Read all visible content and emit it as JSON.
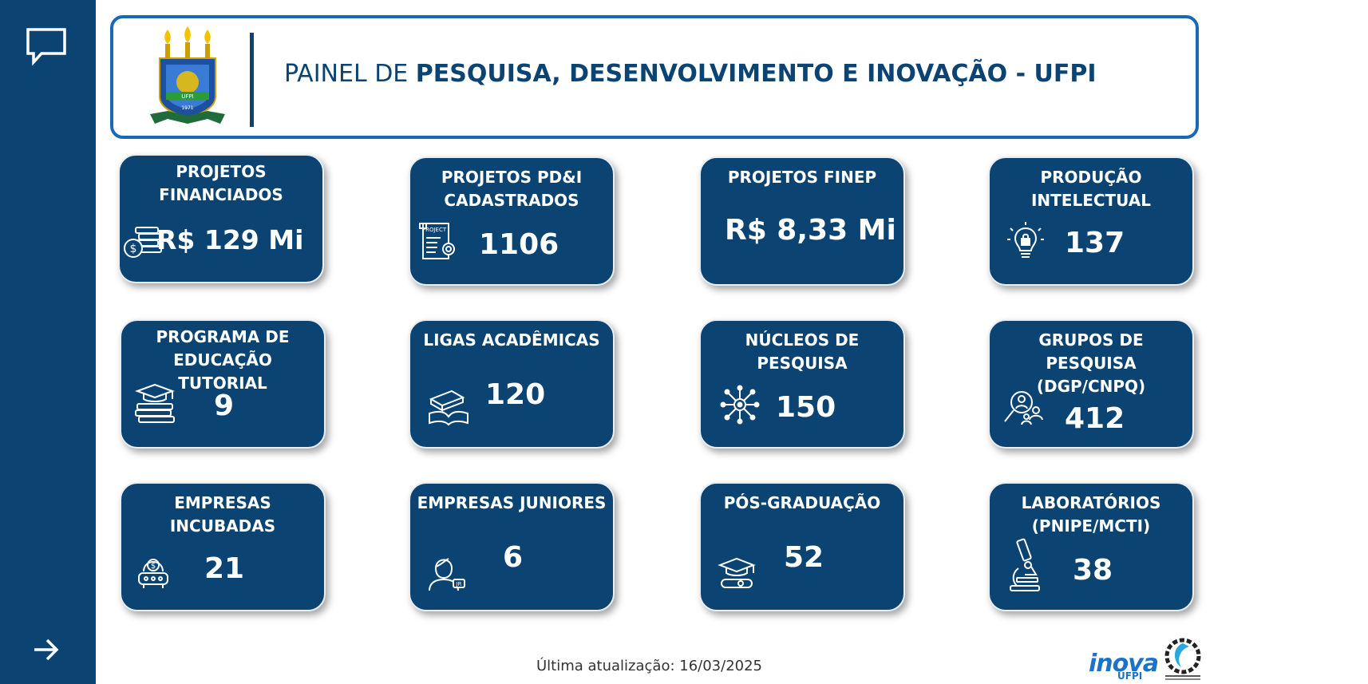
{
  "header": {
    "title_regular": "PAINEL DE ",
    "title_bold": "PESQUISA, DESENVOLVIMENTO E INOVAÇÃO - UFPI"
  },
  "sidebar": {
    "top_icon": "comment-icon",
    "bottom_icon": "arrow-right-icon"
  },
  "cards": [
    {
      "title": "PROJETOS FINANCIADOS",
      "value": "R$ 129 Mi",
      "icon": "money-stack-icon"
    },
    {
      "title": "PROJETOS PD&I CADASTRADOS",
      "value": "1106",
      "icon": "project-document-icon"
    },
    {
      "title": "PROJETOS FINEP",
      "value": "R$ 8,33 Mi",
      "icon": ""
    },
    {
      "title": "PRODUÇÃO INTELECTUAL",
      "value": "137",
      "icon": "lightbulb-lock-icon"
    },
    {
      "title": "PROGRAMA DE EDUCAÇÃO TUTORIAL",
      "value": "9",
      "icon": "graduation-books-icon"
    },
    {
      "title": "LIGAS ACADÊMICAS",
      "value": "120",
      "icon": "books-icon"
    },
    {
      "title": "NÚCLEOS DE PESQUISA",
      "value": "150",
      "icon": "network-hub-icon"
    },
    {
      "title": "GRUPOS DE PESQUISA (DGP/CNPQ)",
      "value": "412",
      "icon": "search-group-icon"
    },
    {
      "title": "EMPRESAS INCUBADAS",
      "value": "21",
      "icon": "incubator-icon"
    },
    {
      "title": "EMPRESAS JUNIORES",
      "value": "6",
      "icon": "junior-person-icon"
    },
    {
      "title": "PÓS-GRADUAÇÃO",
      "value": "52",
      "icon": "graduation-cap-icon"
    },
    {
      "title": "LABORATÓRIOS (PNIPE/MCTI)",
      "value": "38",
      "icon": "microscope-icon"
    }
  ],
  "footer": {
    "update_text": "Última atualização: 16/03/2025",
    "inova_logo": "inova",
    "inova_sub": "UFPI"
  },
  "colors": {
    "primary": "#0b4473",
    "header_border": "#1769b8",
    "inova": "#1a73c8"
  }
}
